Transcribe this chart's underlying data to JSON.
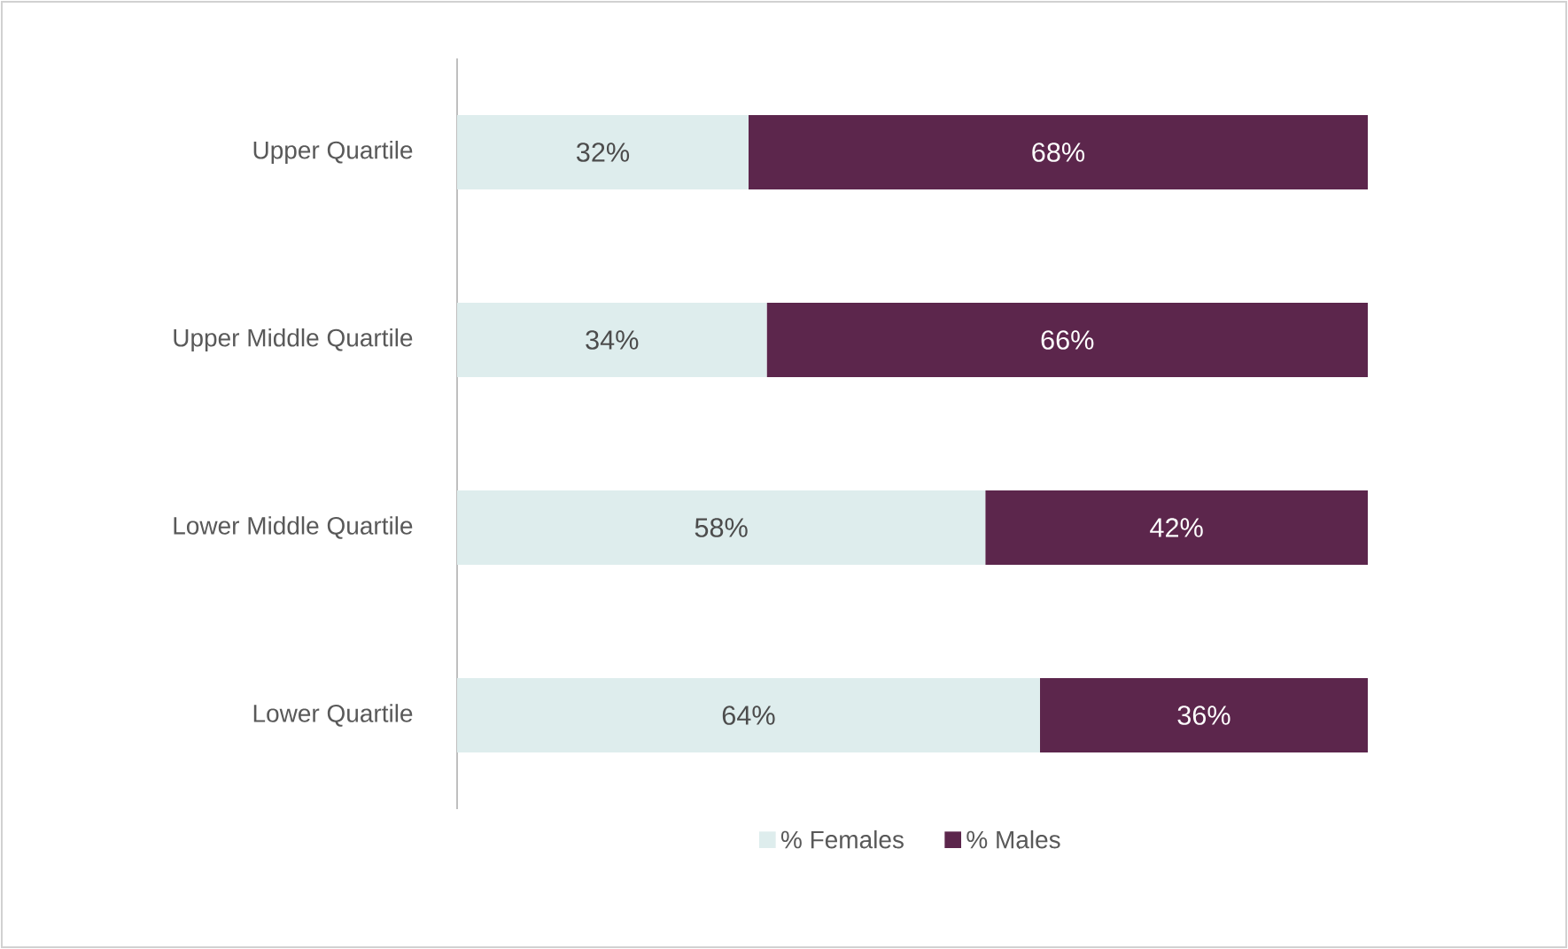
{
  "chart_data": {
    "type": "bar",
    "orientation": "horizontal",
    "stacked": true,
    "categories": [
      "Upper Quartile",
      "Upper Middle Quartile",
      "Lower Middle Quartile",
      "Lower Quartile"
    ],
    "series": [
      {
        "name": "% Females",
        "color": "#deeded",
        "values": [
          32,
          34,
          58,
          64
        ],
        "value_labels": [
          "32%",
          "34%",
          "58%",
          "64%"
        ]
      },
      {
        "name": "% Males",
        "color": "#5c264c",
        "values": [
          68,
          66,
          42,
          36
        ],
        "value_labels": [
          "68%",
          "66%",
          "42%",
          "36%"
        ]
      }
    ],
    "tick_labels": "y",
    "legend": "bottom"
  }
}
